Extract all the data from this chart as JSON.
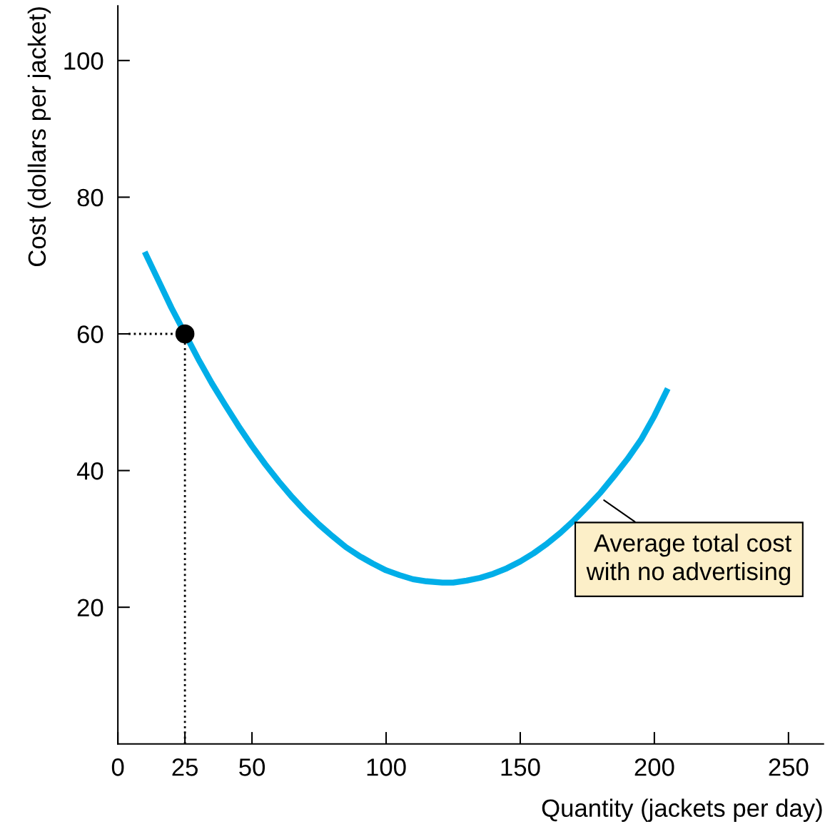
{
  "chart_data": {
    "type": "line",
    "xlabel": "Quantity (jackets per day)",
    "ylabel": "Cost (dollars per jacket)",
    "xlim": [
      0,
      263
    ],
    "ylim": [
      0,
      108
    ],
    "xticks": [
      0,
      25,
      50,
      100,
      150,
      200,
      250
    ],
    "yticks": [
      20,
      40,
      60,
      80,
      100
    ],
    "grid": false,
    "series": [
      {
        "color": "#00aee8",
        "line_style": "solid",
        "marker": "none",
        "x": [
          10,
          15,
          20,
          30,
          35,
          40,
          45,
          50,
          55,
          60,
          65,
          70,
          75,
          80,
          85,
          90,
          95,
          100,
          105,
          110,
          115,
          121,
          125,
          130,
          135,
          140,
          145,
          150,
          155,
          160,
          165,
          170,
          175,
          180,
          185,
          190,
          195,
          200,
          205
        ],
        "values": [
          72,
          67.9,
          63.8,
          56.3,
          52.8,
          49.6,
          46.5,
          43.6,
          40.9,
          38.4,
          36.1,
          34,
          32.1,
          30.4,
          28.8,
          27.5,
          26.4,
          25.4,
          24.7,
          24.1,
          23.8,
          23.6,
          23.6,
          23.9,
          24.3,
          24.9,
          25.7,
          26.7,
          27.9,
          29.3,
          30.9,
          32.7,
          34.7,
          36.8,
          39.2,
          41.7,
          44.5,
          48,
          52
        ]
      },
      {
        "type": "scatter",
        "color": "#000000",
        "marker": "circle",
        "line_style": "dotted",
        "x": [
          25
        ],
        "values": [
          60
        ],
        "errors": [
          [
            0,
            60
          ]
        ],
        "xerrors": [
          [
            4,
            25
          ]
        ]
      }
    ],
    "annotations": [
      {
        "text": "Average total cost\nwith no advertising",
        "x": 180,
        "y": 36
      }
    ]
  }
}
